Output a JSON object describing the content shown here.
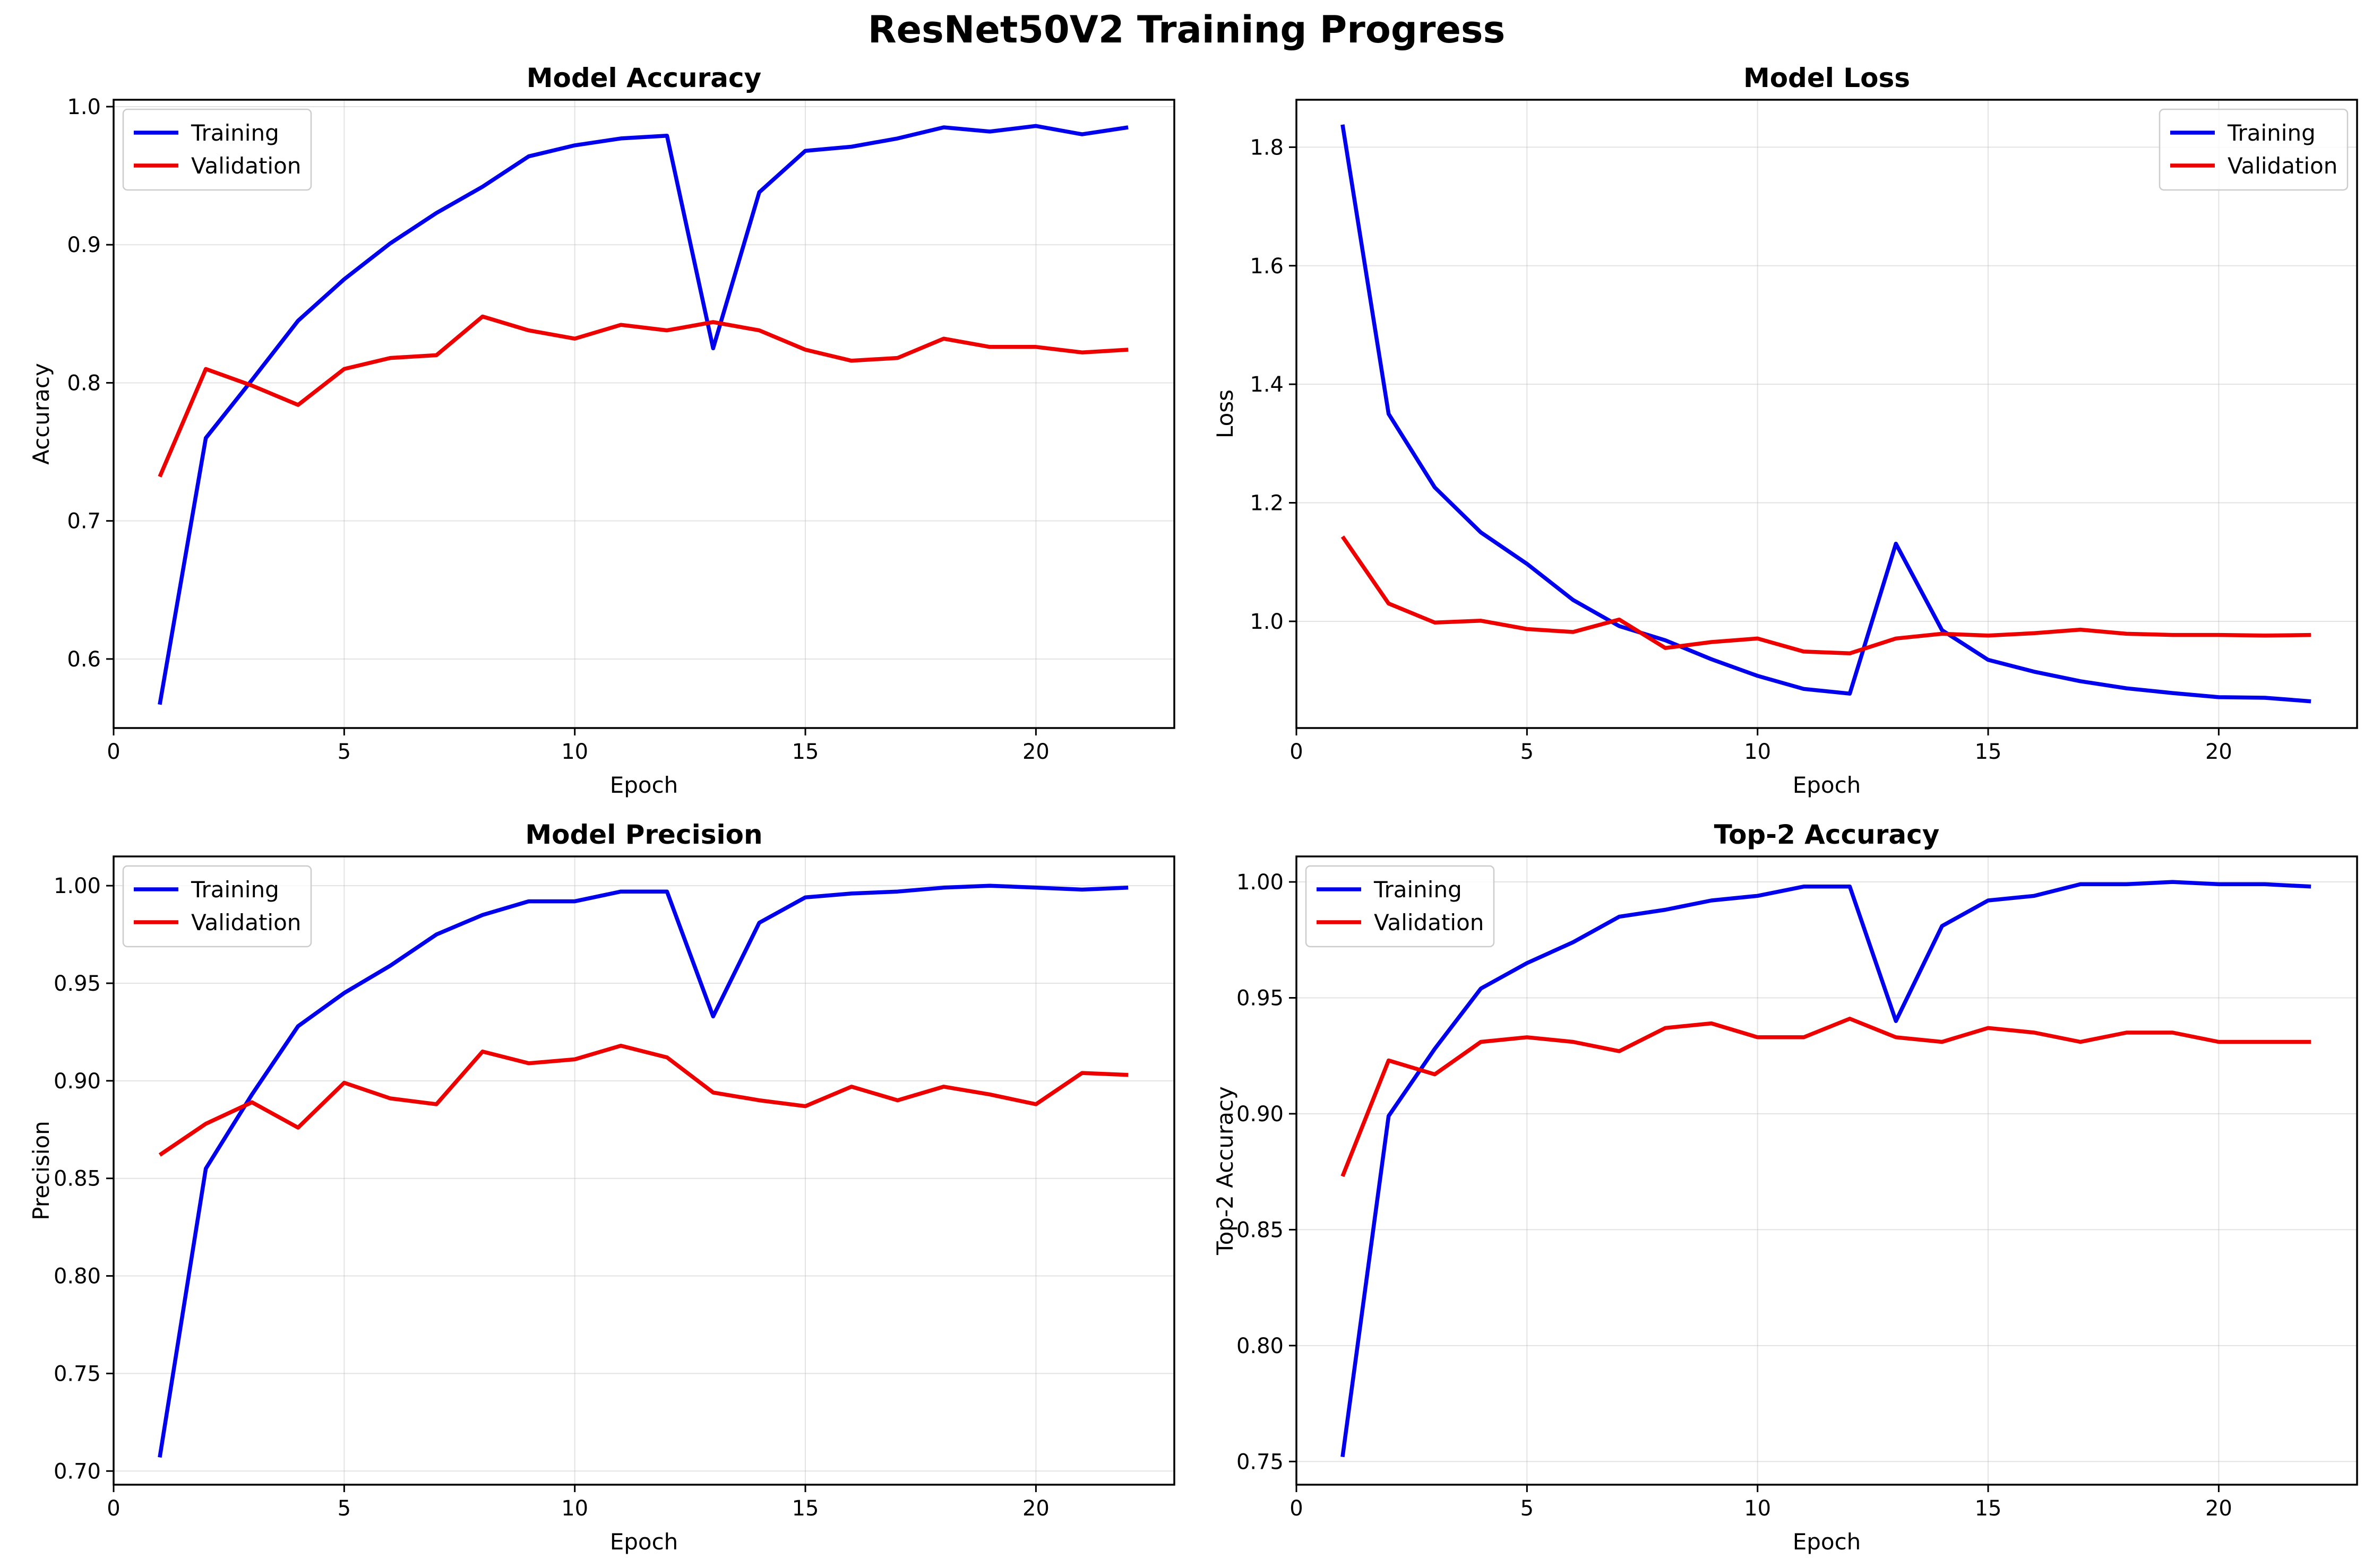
{
  "figure": {
    "title": "ResNet50V2 Training Progress"
  },
  "colors": {
    "training": "#0000ee",
    "validation": "#ee0000"
  },
  "chart_data": [
    {
      "type": "line",
      "title": "Model Accuracy",
      "xlabel": "Epoch",
      "ylabel": "Accuracy",
      "xlim": [
        0,
        23
      ],
      "ylim": [
        0.55,
        1.005
      ],
      "xticks": [
        0,
        5,
        10,
        15,
        20
      ],
      "yticks": [
        0.6,
        0.7,
        0.8,
        0.9,
        1.0
      ],
      "tick_format": 1,
      "grid": true,
      "legend_position": "upper-left",
      "x": [
        1,
        2,
        3,
        4,
        5,
        6,
        7,
        8,
        9,
        10,
        11,
        12,
        13,
        14,
        15,
        16,
        17,
        18,
        19,
        20,
        21,
        22
      ],
      "series": [
        {
          "name": "Training",
          "color": "#0000ee",
          "values": [
            0.567,
            0.76,
            0.802,
            0.845,
            0.875,
            0.901,
            0.923,
            0.942,
            0.964,
            0.972,
            0.977,
            0.979,
            0.825,
            0.938,
            0.968,
            0.971,
            0.977,
            0.985,
            0.982,
            0.986,
            0.98,
            0.985
          ]
        },
        {
          "name": "Validation",
          "color": "#ee0000",
          "values": [
            0.732,
            0.81,
            0.798,
            0.784,
            0.81,
            0.818,
            0.82,
            0.848,
            0.838,
            0.832,
            0.842,
            0.838,
            0.844,
            0.838,
            0.824,
            0.816,
            0.818,
            0.832,
            0.826,
            0.826,
            0.822,
            0.824
          ]
        }
      ]
    },
    {
      "type": "line",
      "title": "Model Loss",
      "xlabel": "Epoch",
      "ylabel": "Loss",
      "xlim": [
        0,
        23
      ],
      "ylim": [
        0.82,
        1.88
      ],
      "xticks": [
        0,
        5,
        10,
        15,
        20
      ],
      "yticks": [
        1.0,
        1.2,
        1.4,
        1.6,
        1.8
      ],
      "tick_format": 1,
      "grid": true,
      "legend_position": "upper-right",
      "x": [
        1,
        2,
        3,
        4,
        5,
        6,
        7,
        8,
        9,
        10,
        11,
        12,
        13,
        14,
        15,
        16,
        17,
        18,
        19,
        20,
        21,
        22
      ],
      "series": [
        {
          "name": "Training",
          "color": "#0000ee",
          "values": [
            1.838,
            1.35,
            1.226,
            1.15,
            1.097,
            1.036,
            0.992,
            0.968,
            0.936,
            0.908,
            0.886,
            0.878,
            1.131,
            0.985,
            0.935,
            0.915,
            0.899,
            0.887,
            0.879,
            0.872,
            0.871,
            0.865
          ]
        },
        {
          "name": "Validation",
          "color": "#ee0000",
          "values": [
            1.143,
            1.03,
            0.998,
            1.001,
            0.987,
            0.982,
            1.003,
            0.955,
            0.965,
            0.971,
            0.949,
            0.946,
            0.971,
            0.979,
            0.976,
            0.98,
            0.986,
            0.979,
            0.977,
            0.977,
            0.976,
            0.977
          ]
        }
      ]
    },
    {
      "type": "line",
      "title": "Model Precision",
      "xlabel": "Epoch",
      "ylabel": "Precision",
      "xlim": [
        0,
        23
      ],
      "ylim": [
        0.693,
        1.015
      ],
      "xticks": [
        0,
        5,
        10,
        15,
        20
      ],
      "yticks": [
        0.7,
        0.75,
        0.8,
        0.85,
        0.9,
        0.95,
        1.0
      ],
      "tick_format": 2,
      "grid": true,
      "legend_position": "upper-left",
      "x": [
        1,
        2,
        3,
        4,
        5,
        6,
        7,
        8,
        9,
        10,
        11,
        12,
        13,
        14,
        15,
        16,
        17,
        18,
        19,
        20,
        21,
        22
      ],
      "series": [
        {
          "name": "Training",
          "color": "#0000ee",
          "values": [
            0.707,
            0.855,
            0.893,
            0.928,
            0.945,
            0.959,
            0.975,
            0.985,
            0.992,
            0.992,
            0.997,
            0.997,
            0.933,
            0.981,
            0.994,
            0.996,
            0.997,
            0.999,
            1.0,
            0.999,
            0.998,
            0.999
          ]
        },
        {
          "name": "Validation",
          "color": "#ee0000",
          "values": [
            0.862,
            0.878,
            0.889,
            0.876,
            0.899,
            0.891,
            0.888,
            0.915,
            0.909,
            0.911,
            0.918,
            0.912,
            0.894,
            0.89,
            0.887,
            0.897,
            0.89,
            0.897,
            0.893,
            0.888,
            0.904,
            0.903
          ]
        }
      ]
    },
    {
      "type": "line",
      "title": "Top-2 Accuracy",
      "xlabel": "Epoch",
      "ylabel": "Top-2 Accuracy",
      "xlim": [
        0,
        23
      ],
      "ylim": [
        0.74,
        1.011
      ],
      "xticks": [
        0,
        5,
        10,
        15,
        20
      ],
      "yticks": [
        0.75,
        0.8,
        0.85,
        0.9,
        0.95,
        1.0
      ],
      "tick_format": 2,
      "grid": true,
      "legend_position": "upper-left",
      "x": [
        1,
        2,
        3,
        4,
        5,
        6,
        7,
        8,
        9,
        10,
        11,
        12,
        13,
        14,
        15,
        16,
        17,
        18,
        19,
        20,
        21,
        22
      ],
      "series": [
        {
          "name": "Training",
          "color": "#0000ee",
          "values": [
            0.752,
            0.899,
            0.928,
            0.954,
            0.965,
            0.974,
            0.985,
            0.988,
            0.992,
            0.994,
            0.998,
            0.998,
            0.94,
            0.981,
            0.992,
            0.994,
            0.999,
            0.999,
            1.0,
            0.999,
            0.999,
            0.998
          ]
        },
        {
          "name": "Validation",
          "color": "#ee0000",
          "values": [
            0.873,
            0.923,
            0.917,
            0.931,
            0.933,
            0.931,
            0.927,
            0.937,
            0.939,
            0.933,
            0.933,
            0.941,
            0.933,
            0.931,
            0.937,
            0.935,
            0.931,
            0.935,
            0.935,
            0.931,
            0.931,
            0.931
          ]
        }
      ]
    }
  ]
}
